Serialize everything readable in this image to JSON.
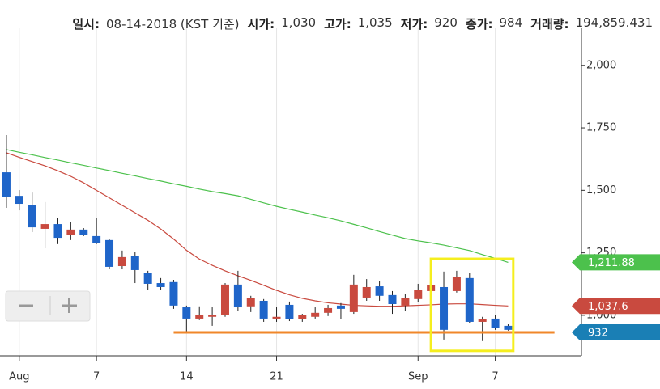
{
  "chart_data": {
    "type": "candlestick",
    "header": [
      {
        "label": "일시:",
        "value": "08-14-2018 (KST 기준)"
      },
      {
        "label": "시가:",
        "value": "1,030"
      },
      {
        "label": "고가:",
        "value": "1,035"
      },
      {
        "label": "저가:",
        "value": "920"
      },
      {
        "label": "종가:",
        "value": "984"
      },
      {
        "label": "거래량:",
        "value": "194,859.431"
      }
    ],
    "x": [
      0,
      1,
      2,
      3,
      4,
      5,
      6,
      7,
      8,
      9,
      10,
      11,
      12,
      13,
      14,
      15,
      16,
      17,
      18,
      19,
      20,
      21,
      22,
      23,
      24,
      25,
      26,
      27,
      28,
      29,
      30,
      31,
      32,
      33,
      34,
      35,
      36,
      37,
      38,
      39
    ],
    "open": [
      1572,
      1478,
      1440,
      1346,
      1365,
      1320,
      1343,
      1317,
      1301,
      1197,
      1236,
      1168,
      1129,
      1133,
      1032,
      987,
      994,
      1003,
      1123,
      1036,
      1058,
      987,
      1042,
      984,
      994,
      1010,
      1039,
      1013,
      1071,
      1116,
      1081,
      1039,
      1065,
      1097,
      1113,
      1097,
      1149,
      974,
      987,
      958
    ],
    "high": [
      1721,
      1501,
      1491,
      1453,
      1388,
      1372,
      1349,
      1388,
      1307,
      1259,
      1252,
      1178,
      1149,
      1142,
      1039,
      1036,
      1032,
      1129,
      1178,
      1078,
      1065,
      1032,
      1055,
      1006,
      1032,
      1042,
      1049,
      1162,
      1145,
      1136,
      1097,
      1084,
      1126,
      1162,
      1175,
      1178,
      1171,
      994,
      1000,
      964
    ],
    "low": [
      1430,
      1420,
      1333,
      1268,
      1285,
      1301,
      1317,
      1285,
      1184,
      1184,
      1129,
      1103,
      1103,
      1026,
      935,
      981,
      958,
      994,
      1019,
      1013,
      974,
      974,
      977,
      974,
      987,
      997,
      984,
      1006,
      1058,
      1058,
      1006,
      1016,
      1052,
      1065,
      903,
      1091,
      968,
      897,
      942,
      939
    ],
    "close": [
      1472,
      1446,
      1352,
      1365,
      1310,
      1343,
      1320,
      1288,
      1194,
      1233,
      1181,
      1126,
      1113,
      1039,
      987,
      1003,
      1000,
      1123,
      1032,
      1068,
      987,
      994,
      984,
      1000,
      1010,
      1029,
      1026,
      1123,
      1113,
      1078,
      1045,
      1068,
      1103,
      1120,
      942,
      1155,
      974,
      984,
      948,
      942
    ],
    "up_color": "#c94a3f",
    "down_color": "#1f65c9",
    "lines": [
      {
        "color": "#4cc14c",
        "values": [
          1663,
          1652,
          1642,
          1631,
          1621,
          1610,
          1600,
          1589,
          1579,
          1568,
          1558,
          1547,
          1537,
          1526,
          1516,
          1505,
          1495,
          1487,
          1478,
          1464,
          1450,
          1436,
          1424,
          1413,
          1401,
          1390,
          1378,
          1364,
          1350,
          1335,
          1321,
          1307,
          1298,
          1290,
          1281,
          1270,
          1259,
          1243,
          1228,
          1211.88
        ],
        "last_label": "1,211.88"
      },
      {
        "color": "#c94a3f",
        "values": [
          1650,
          1632,
          1615,
          1598,
          1578,
          1556,
          1530,
          1500,
          1470,
          1440,
          1410,
          1380,
          1345,
          1305,
          1260,
          1225,
          1200,
          1178,
          1158,
          1140,
          1120,
          1100,
          1082,
          1068,
          1058,
          1050,
          1045,
          1040,
          1038,
          1036,
          1036,
          1038,
          1040,
          1042,
          1045,
          1046,
          1046,
          1043,
          1040,
          1037.6
        ],
        "last_label": "1,037.6"
      }
    ],
    "current_price": {
      "value": 932,
      "color": "#1a7fb5"
    },
    "support_line": {
      "value": 932,
      "x": [
        13,
        42.6
      ],
      "color": "#f0872a"
    },
    "highlight": {
      "x": [
        33,
        39.4
      ],
      "y": [
        858,
        1226
      ],
      "color": "#f5ee1e"
    },
    "xlim": [
      -0.5,
      44.7
    ],
    "ylim": [
      838,
      2148
    ],
    "xticks": [
      {
        "value": 1,
        "label": "Aug"
      },
      7,
      14,
      21,
      {
        "value": 32,
        "label": "Sep"
      },
      {
        "value": 38,
        "label": "7"
      }
    ],
    "yticks": [
      {
        "value": 1000,
        "label": "1,000"
      },
      {
        "value": 1250,
        "label": "1,250"
      },
      {
        "value": 1500,
        "label": "1,500"
      },
      {
        "value": 1750,
        "label": "1,750"
      },
      {
        "value": 2000,
        "label": "2,000"
      }
    ],
    "grid": "x"
  }
}
